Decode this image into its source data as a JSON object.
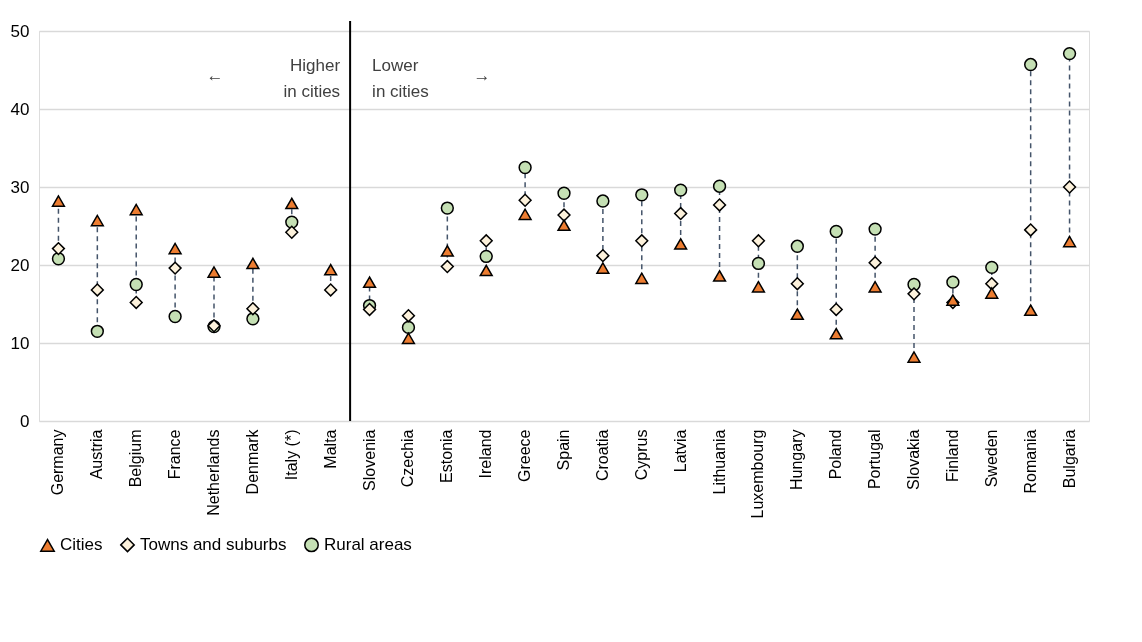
{
  "chart_data": {
    "type": "scatter",
    "categories": [
      "Germany",
      "Austria",
      "Belgium",
      "France",
      "Netherlands",
      "Denmark",
      "Italy (*)",
      "Malta",
      "Slovenia",
      "Czechia",
      "Estonia",
      "Ireland",
      "Greece",
      "Spain",
      "Croatia",
      "Cyprus",
      "Latvia",
      "Lithuania",
      "Luxembourg",
      "Hungary",
      "Poland",
      "Portugal",
      "Slovakia",
      "Finland",
      "Sweden",
      "Romania",
      "Bulgaria"
    ],
    "series": [
      {
        "name": "Cities",
        "color": "#ed7d31",
        "marker": "triangle",
        "values": [
          28.2,
          25.7,
          27.1,
          22.1,
          19.1,
          20.2,
          27.9,
          19.4,
          17.8,
          10.6,
          21.8,
          19.3,
          26.5,
          25.1,
          19.6,
          18.3,
          22.7,
          18.6,
          17.2,
          13.7,
          11.2,
          17.2,
          8.2,
          15.5,
          16.4,
          14.2,
          23.0
        ]
      },
      {
        "name": "Towns and suburbs",
        "color": "#fdf2dc",
        "marker": "diamond",
        "values": [
          22.1,
          16.8,
          15.2,
          19.6,
          12.2,
          14.4,
          24.2,
          16.8,
          14.3,
          13.5,
          19.8,
          23.1,
          28.3,
          26.4,
          21.2,
          23.1,
          26.6,
          27.7,
          23.1,
          17.6,
          14.3,
          20.3,
          16.3,
          15.2,
          17.6,
          24.5,
          30.0
        ]
      },
      {
        "name": "Rural areas",
        "color": "#c5e0b4",
        "marker": "circle",
        "values": [
          20.8,
          11.5,
          17.5,
          13.4,
          12.1,
          13.1,
          25.5,
          null,
          14.8,
          12.0,
          27.3,
          21.1,
          32.5,
          29.2,
          28.2,
          29.0,
          29.6,
          30.1,
          20.2,
          22.4,
          24.3,
          24.6,
          17.5,
          17.8,
          19.7,
          45.7,
          47.1
        ]
      }
    ],
    "ylim": [
      0,
      50
    ],
    "yticks": [
      0,
      10,
      20,
      30,
      40,
      50
    ],
    "grid": "y",
    "legend": "bottom",
    "ref_lines": [
      {
        "axis": "x",
        "value": "Malta",
        "color": "#000000",
        "line_style": "solid"
      }
    ],
    "annotations": [
      "←",
      "Higher in cities",
      "Lower in cities",
      "→"
    ]
  }
}
